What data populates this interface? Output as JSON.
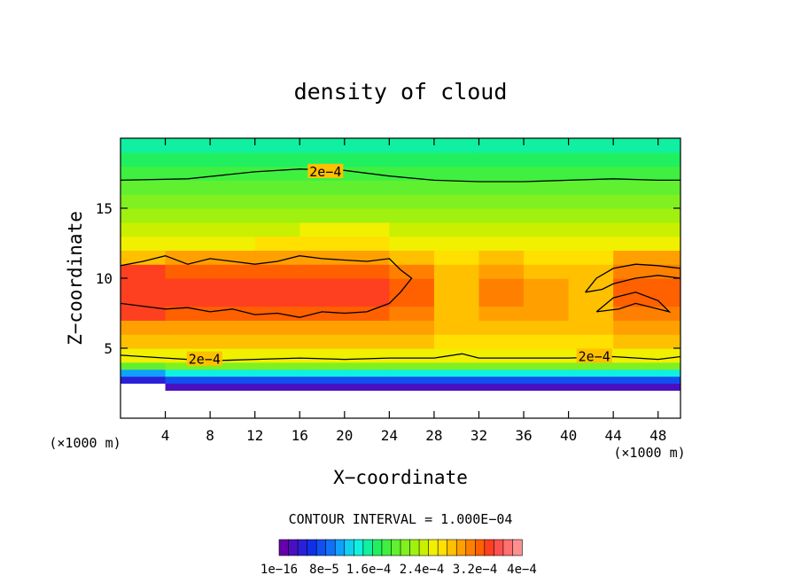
{
  "chart_data": {
    "type": "heatmap",
    "title": "density of cloud",
    "xlabel": "X−coordinate",
    "ylabel": "Z−coordinate",
    "x_unit_left": "(×1000 m)",
    "x_unit_right": "(×1000 m)",
    "xlim": [
      0,
      50
    ],
    "ylim": [
      0,
      20
    ],
    "xticks": [
      4,
      8,
      12,
      16,
      20,
      24,
      28,
      32,
      36,
      40,
      44,
      48
    ],
    "xtick_labels": [
      "4",
      "8",
      "12",
      "16",
      "20",
      "24",
      "28",
      "32",
      "36",
      "40",
      "44",
      "48"
    ],
    "yticks": [
      5,
      10,
      15
    ],
    "ytick_labels": [
      "5",
      "10",
      "15"
    ],
    "contour_interval_text": "CONTOUR INTERVAL = 1.000E−04",
    "contour_labels": [
      {
        "text": "2e−4",
        "x": 18.3,
        "y": 17.6
      },
      {
        "text": "2e−4",
        "x": 42.3,
        "y": 4.4
      },
      {
        "text": "2e−4",
        "x": 7.5,
        "y": 4.2
      }
    ],
    "colorbar": {
      "colors": [
        "#6600aa",
        "#4a10c0",
        "#2a20d8",
        "#1030e8",
        "#1050f0",
        "#1070f8",
        "#10a0ff",
        "#10d0f0",
        "#10f0e0",
        "#10f0a0",
        "#20f060",
        "#40f040",
        "#60f030",
        "#80f020",
        "#a0f010",
        "#c8f000",
        "#f0f000",
        "#ffe000",
        "#ffc000",
        "#ffa000",
        "#ff8000",
        "#ff6000",
        "#ff4020",
        "#ff5050",
        "#ff7070",
        "#ff9090"
      ],
      "tick_labels": [
        "1e−16",
        "8e−5",
        "1.6e−4",
        "2.4e−4",
        "3.2e−4",
        "4e−4"
      ]
    },
    "z_grid": [
      0,
      1.5,
      2,
      2.5,
      3,
      3.5,
      4,
      5,
      6,
      7,
      8,
      9,
      10,
      11,
      12,
      13,
      14,
      15,
      16,
      17,
      18,
      19,
      20
    ],
    "columns": [
      {
        "x": 0,
        "levels": [
          null,
          null,
          null,
          2,
          6,
          12,
          16,
          18,
          19,
          22,
          22,
          22,
          22,
          18,
          16,
          15,
          14,
          13,
          12,
          11,
          10,
          9,
          9
        ]
      },
      {
        "x": 4,
        "levels": [
          null,
          null,
          1,
          4,
          8,
          13,
          16,
          18,
          19,
          21,
          22,
          22,
          21,
          19,
          16,
          15,
          14,
          13,
          12,
          11,
          10,
          9,
          9
        ]
      },
      {
        "x": 8,
        "levels": [
          null,
          null,
          1,
          4,
          8,
          13,
          16,
          18,
          19,
          21,
          22,
          22,
          21,
          19,
          16,
          15,
          14,
          13,
          12,
          11,
          10,
          9,
          9
        ]
      },
      {
        "x": 12,
        "levels": [
          null,
          null,
          1,
          4,
          8,
          13,
          16,
          18,
          19,
          21,
          22,
          22,
          21,
          19,
          17,
          15,
          14,
          13,
          12,
          11,
          10,
          9,
          9
        ]
      },
      {
        "x": 16,
        "levels": [
          null,
          null,
          1,
          4,
          8,
          13,
          16,
          18,
          19,
          21,
          22,
          22,
          21,
          19,
          17,
          16,
          14,
          13,
          12,
          11,
          10,
          9,
          9
        ]
      },
      {
        "x": 20,
        "levels": [
          null,
          null,
          1,
          4,
          8,
          13,
          16,
          18,
          19,
          21,
          22,
          22,
          21,
          19,
          17,
          16,
          14,
          13,
          12,
          11,
          10,
          9,
          9
        ]
      },
      {
        "x": 24,
        "levels": [
          null,
          null,
          1,
          4,
          8,
          13,
          16,
          18,
          19,
          20,
          21,
          21,
          20,
          18,
          16,
          15,
          14,
          13,
          12,
          11,
          10,
          9,
          9
        ]
      },
      {
        "x": 28,
        "levels": [
          null,
          null,
          1,
          4,
          8,
          13,
          16,
          17,
          18,
          18,
          18,
          18,
          18,
          17,
          16,
          15,
          14,
          13,
          12,
          11,
          10,
          9,
          9
        ]
      },
      {
        "x": 32,
        "levels": [
          null,
          null,
          1,
          4,
          8,
          13,
          16,
          17,
          18,
          19,
          20,
          20,
          19,
          18,
          16,
          15,
          14,
          13,
          12,
          11,
          10,
          9,
          9
        ]
      },
      {
        "x": 36,
        "levels": [
          null,
          null,
          1,
          4,
          8,
          13,
          16,
          17,
          18,
          19,
          19,
          19,
          18,
          17,
          16,
          15,
          14,
          13,
          12,
          11,
          10,
          9,
          9
        ]
      },
      {
        "x": 40,
        "levels": [
          null,
          null,
          1,
          4,
          8,
          13,
          16,
          17,
          18,
          18,
          18,
          18,
          18,
          17,
          16,
          15,
          14,
          13,
          12,
          11,
          10,
          9,
          9
        ]
      },
      {
        "x": 44,
        "levels": [
          null,
          null,
          1,
          4,
          8,
          13,
          16,
          18,
          19,
          20,
          21,
          21,
          20,
          19,
          16,
          15,
          14,
          13,
          12,
          11,
          10,
          9,
          9
        ]
      },
      {
        "x": 48,
        "levels": [
          null,
          null,
          1,
          4,
          8,
          13,
          16,
          18,
          19,
          20,
          21,
          21,
          20,
          19,
          16,
          15,
          14,
          13,
          12,
          11,
          10,
          9,
          9
        ]
      },
      {
        "x": 50,
        "levels": [
          null,
          null,
          1,
          4,
          8,
          13,
          16,
          18,
          19,
          20,
          21,
          21,
          20,
          19,
          16,
          15,
          14,
          13,
          12,
          11,
          10,
          9,
          9
        ]
      }
    ],
    "contours": [
      {
        "name": "upper-2e-4",
        "points": [
          [
            0,
            17.0
          ],
          [
            6,
            17.1
          ],
          [
            12,
            17.6
          ],
          [
            16,
            17.8
          ],
          [
            20,
            17.7
          ],
          [
            24,
            17.3
          ],
          [
            28,
            17.0
          ],
          [
            32,
            16.9
          ],
          [
            36,
            16.9
          ],
          [
            40,
            17.0
          ],
          [
            44,
            17.1
          ],
          [
            48,
            17.0
          ],
          [
            50,
            17.0
          ]
        ]
      },
      {
        "name": "lower-2e-4",
        "points": [
          [
            0,
            4.5
          ],
          [
            4,
            4.3
          ],
          [
            8,
            4.1
          ],
          [
            12,
            4.2
          ],
          [
            16,
            4.3
          ],
          [
            20,
            4.2
          ],
          [
            24,
            4.3
          ],
          [
            28,
            4.3
          ],
          [
            30.5,
            4.6
          ],
          [
            32,
            4.3
          ],
          [
            36,
            4.3
          ],
          [
            40,
            4.3
          ],
          [
            44,
            4.4
          ],
          [
            48,
            4.2
          ],
          [
            50,
            4.4
          ]
        ]
      },
      {
        "name": "upper-cloud-edge",
        "points": [
          [
            0,
            10.9
          ],
          [
            2,
            11.2
          ],
          [
            4,
            11.6
          ],
          [
            6,
            11.0
          ],
          [
            8,
            11.4
          ],
          [
            10,
            11.2
          ],
          [
            12,
            11.0
          ],
          [
            14,
            11.2
          ],
          [
            16,
            11.6
          ],
          [
            18,
            11.4
          ],
          [
            20,
            11.3
          ],
          [
            22,
            11.2
          ],
          [
            24,
            11.4
          ],
          [
            25,
            10.6
          ],
          [
            26,
            10.0
          ],
          [
            25,
            9.0
          ],
          [
            24,
            8.2
          ],
          [
            22,
            7.6
          ],
          [
            20,
            7.5
          ],
          [
            18,
            7.6
          ],
          [
            16,
            7.2
          ],
          [
            14,
            7.5
          ],
          [
            12,
            7.4
          ],
          [
            10,
            7.8
          ],
          [
            8,
            7.6
          ],
          [
            6,
            7.9
          ],
          [
            4,
            7.8
          ],
          [
            2,
            8.0
          ],
          [
            0,
            8.2
          ]
        ]
      },
      {
        "name": "right-lobe-upper",
        "points": [
          [
            41.5,
            9.0
          ],
          [
            42.5,
            10.0
          ],
          [
            44,
            10.7
          ],
          [
            46,
            11.0
          ],
          [
            48,
            10.9
          ],
          [
            50,
            10.7
          ],
          [
            50,
            10.0
          ],
          [
            48,
            10.2
          ],
          [
            46,
            10.0
          ],
          [
            44,
            9.6
          ],
          [
            43,
            9.2
          ],
          [
            41.5,
            9.0
          ]
        ]
      },
      {
        "name": "right-lobe-lower",
        "points": [
          [
            42.5,
            7.6
          ],
          [
            44,
            8.6
          ],
          [
            46,
            9.0
          ],
          [
            48,
            8.4
          ],
          [
            49,
            7.6
          ],
          [
            48,
            7.8
          ],
          [
            46,
            8.2
          ],
          [
            44.5,
            7.8
          ],
          [
            42.5,
            7.6
          ]
        ]
      }
    ]
  }
}
